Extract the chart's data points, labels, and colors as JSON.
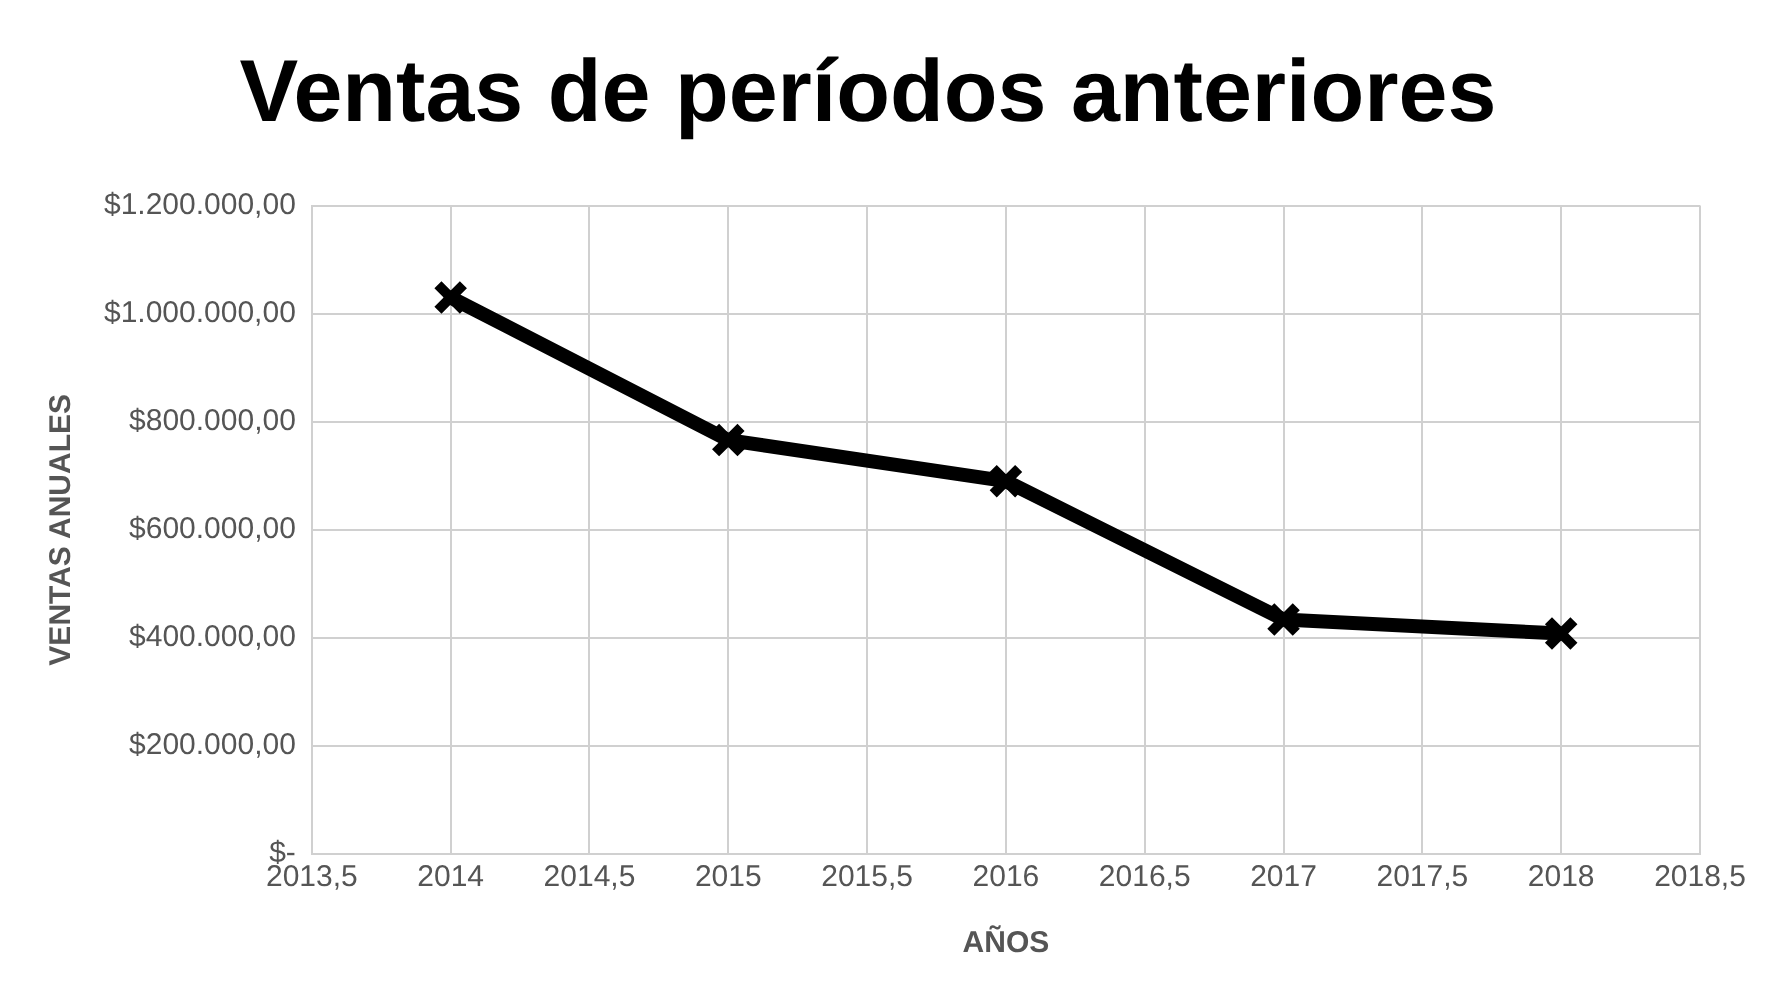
{
  "chart_data": {
    "type": "line",
    "title": "Ventas de períodos anteriores",
    "xlabel": "AÑOS",
    "ylabel": "VENTAS ANUALES",
    "x": [
      2014,
      2015,
      2016,
      2017,
      2018
    ],
    "series": [
      {
        "color": "#000000",
        "values": [
          1030000,
          766000,
          690000,
          434000,
          408000
        ]
      }
    ],
    "xlim": [
      2013.5,
      2018.5
    ],
    "xticks": [
      {
        "value": 2013.5,
        "label": "2013,5"
      },
      2014,
      {
        "value": 2014.5,
        "label": "2014,5"
      },
      2015,
      {
        "value": 2015.5,
        "label": "2015,5"
      },
      2016,
      {
        "value": 2016.5,
        "label": "2016,5"
      },
      2017,
      {
        "value": 2017.5,
        "label": "2017,5"
      },
      2018,
      {
        "value": 2018.5,
        "label": "2018,5"
      }
    ],
    "ylim": [
      0,
      1200000
    ],
    "yticks": [
      {
        "value": 0,
        "label": "$-"
      },
      {
        "value": 200000,
        "label": "$200.000,00"
      },
      {
        "value": 400000,
        "label": "$400.000,00"
      },
      {
        "value": 600000,
        "label": "$600.000,00"
      },
      {
        "value": 800000,
        "label": "$800.000,00"
      },
      {
        "value": 1000000,
        "label": "$1.000.000,00"
      },
      {
        "value": 1200000,
        "label": "$1.200.000,00"
      }
    ],
    "grid": true,
    "marker": "cross",
    "line_style": "solid"
  }
}
